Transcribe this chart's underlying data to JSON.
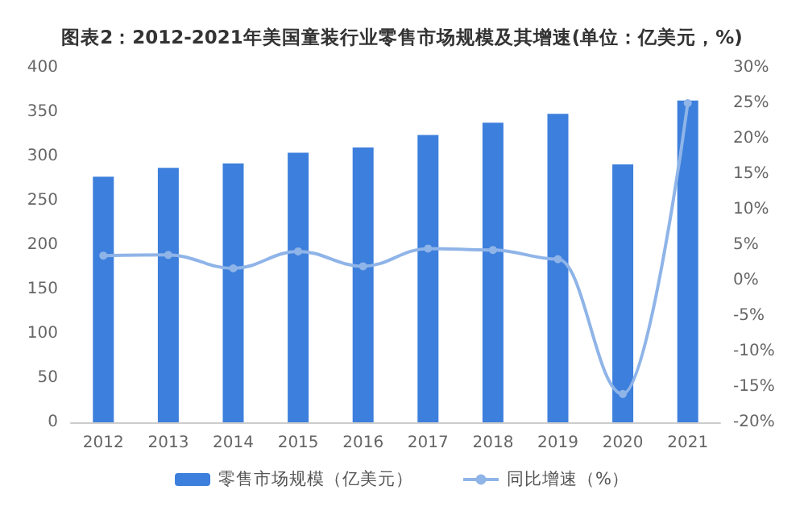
{
  "chart_data": {
    "type": "bar",
    "title": "图表2：2012-2021年美国童装行业零售市场规模及其增速(单位：亿美元，%)",
    "categories": [
      "2012",
      "2013",
      "2014",
      "2015",
      "2016",
      "2017",
      "2018",
      "2019",
      "2020",
      "2021"
    ],
    "series": [
      {
        "name": "零售市场规模（亿美元）",
        "color": "#3d7fdc",
        "values": [
          277,
          287,
          292,
          304,
          310,
          324,
          338,
          348,
          291,
          363
        ]
      },
      {
        "name": "同比增速（%）",
        "type": "line",
        "axis": "y2",
        "color": "#8fb4e8",
        "marker": "circle",
        "values": [
          3.5,
          3.6,
          1.7,
          4.1,
          2,
          4.5,
          4.3,
          3,
          -16,
          25
        ]
      }
    ],
    "ylim": [
      0,
      400
    ],
    "yticks": [
      0,
      50,
      100,
      150,
      200,
      250,
      300,
      350,
      400
    ],
    "y2lim": [
      -20,
      30
    ],
    "y2ticks": [
      {
        "value": -20,
        "label": "-20%"
      },
      {
        "value": -15,
        "label": "-15%"
      },
      {
        "value": -10,
        "label": "-10%"
      },
      {
        "value": -5,
        "label": "-5%"
      },
      {
        "value": 0,
        "label": "0%"
      },
      {
        "value": 5,
        "label": "5%"
      },
      {
        "value": 10,
        "label": "10%"
      },
      {
        "value": 15,
        "label": "15%"
      },
      {
        "value": 20,
        "label": "20%"
      },
      {
        "value": 25,
        "label": "25%"
      },
      {
        "value": 30,
        "label": "30%"
      }
    ],
    "grid": false,
    "legend": "bottom"
  }
}
